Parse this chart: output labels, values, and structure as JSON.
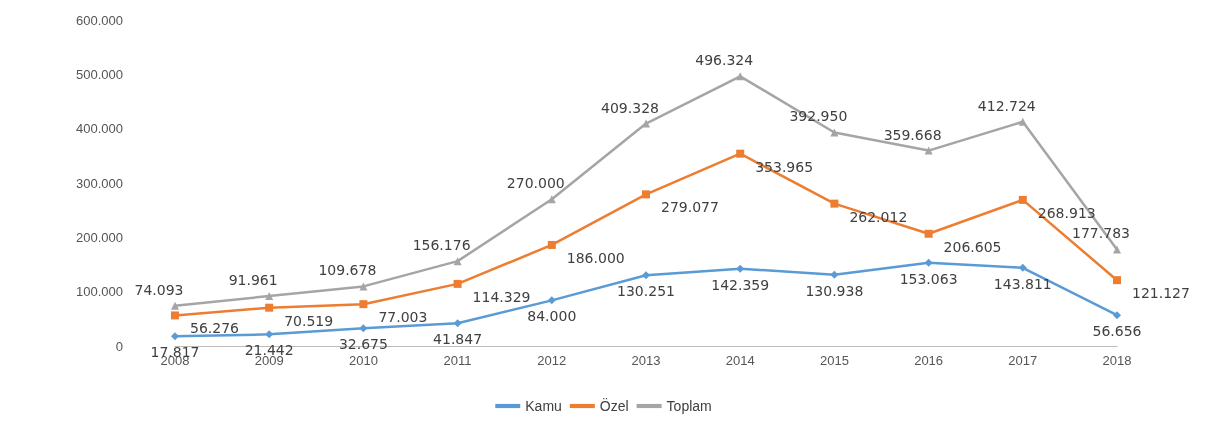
{
  "chart_data": {
    "type": "line",
    "categories": [
      "2008",
      "2009",
      "2010",
      "2011",
      "2012",
      "2013",
      "2014",
      "2015",
      "2016",
      "2017",
      "2018"
    ],
    "ylim": [
      0,
      600000
    ],
    "yticks": [
      0,
      {
        "value": 100000,
        "label": "100.000"
      },
      {
        "value": 200000,
        "label": "200.000"
      },
      {
        "value": 300000,
        "label": "300.000"
      },
      {
        "value": 400000,
        "label": "400.000"
      },
      {
        "value": 500000,
        "label": "500.000"
      },
      {
        "value": 600000,
        "label": "600.000"
      }
    ],
    "grid": false,
    "legend": "bottom",
    "series": [
      {
        "name": "Kamu",
        "color": "#5b9bd5",
        "marker": "diamond",
        "values": [
          17817,
          21442,
          32675,
          41847,
          84000,
          130251,
          142359,
          130938,
          153063,
          143811,
          56656
        ],
        "value_labels": [
          "17.817",
          "21.442",
          "32.675",
          "41.847",
          "84.000",
          "130.251",
          "142.359",
          "130.938",
          "153.063",
          "143.811",
          "56.656"
        ]
      },
      {
        "name": "Özel",
        "color": "#ed7d31",
        "marker": "square",
        "values": [
          56276,
          70519,
          77003,
          114329,
          186000,
          279077,
          353965,
          262012,
          206605,
          268913,
          121127
        ],
        "value_labels": [
          "56.276",
          "70.519",
          "77.003",
          "114.329",
          "186.000",
          "279.077",
          "353.965",
          "262.012",
          "206.605",
          "268.913",
          "121.127"
        ]
      },
      {
        "name": "Toplam",
        "color": "#a5a5a5",
        "marker": "triangle",
        "values": [
          74093,
          91961,
          109678,
          156176,
          270000,
          409328,
          496324,
          392950,
          359668,
          412724,
          177783
        ],
        "value_labels": [
          "74.093",
          "91.961",
          "109.678",
          "156.176",
          "270.000",
          "409.328",
          "496.324",
          "392.950",
          "359.668",
          "412.724",
          "177.783"
        ]
      }
    ]
  }
}
